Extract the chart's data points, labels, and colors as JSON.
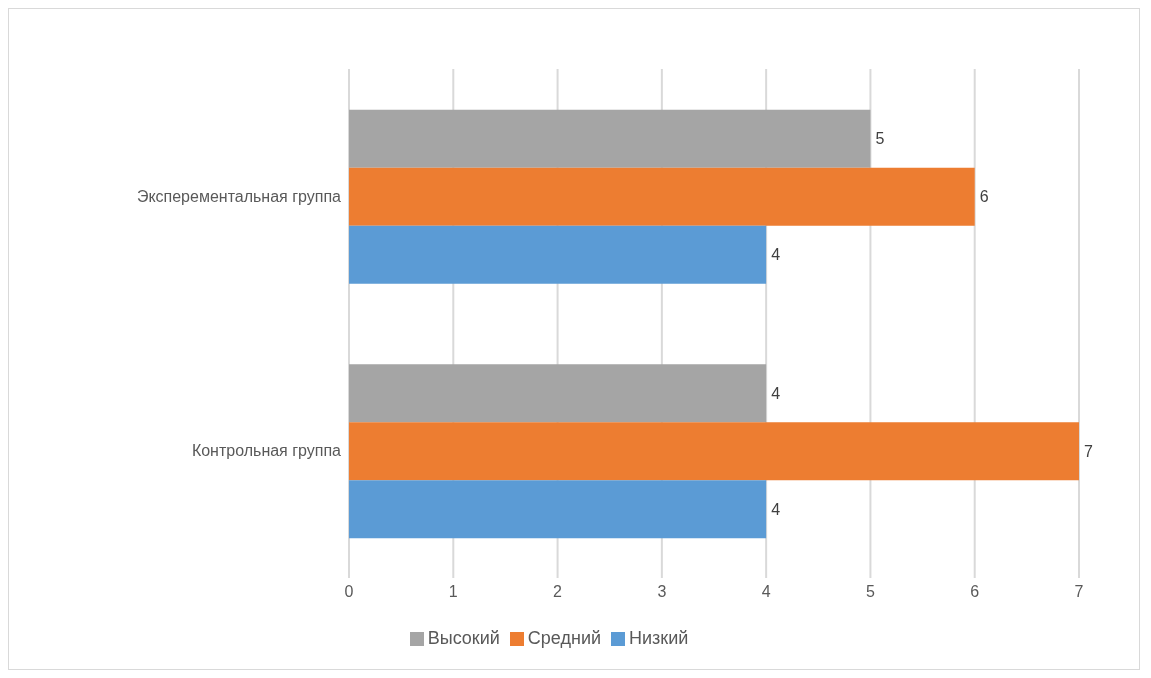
{
  "chart_data": {
    "type": "bar",
    "orientation": "horizontal",
    "categories": [
      "Эксперементальная группа",
      "Контрольная группа"
    ],
    "series": [
      {
        "name": "Высокий",
        "color": "#a5a5a5",
        "values": [
          5,
          4
        ]
      },
      {
        "name": "Средний",
        "color": "#ed7d31",
        "values": [
          6,
          7
        ]
      },
      {
        "name": "Низкий",
        "color": "#5b9bd5",
        "values": [
          4,
          4
        ]
      }
    ],
    "xlim": [
      0,
      7
    ],
    "xticks": [
      0,
      1,
      2,
      3,
      4,
      5,
      6,
      7
    ],
    "grid": "x",
    "legend": "bottom",
    "data_labels": true
  }
}
